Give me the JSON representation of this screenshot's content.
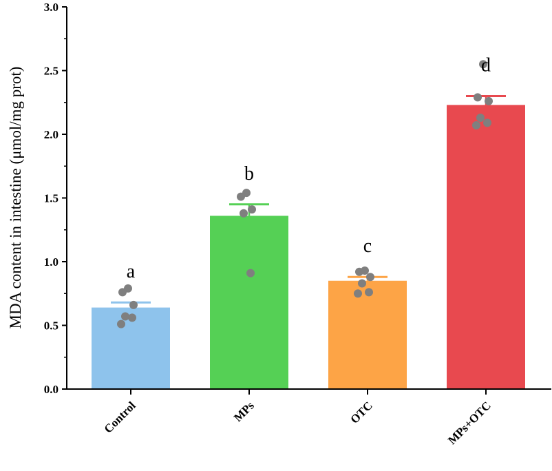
{
  "chart_data": {
    "type": "bar",
    "title": "",
    "xlabel": "",
    "ylabel": "MDA content in intestine (μmol/mg prot)",
    "ylim": [
      0,
      3.0
    ],
    "yticks": [
      0.0,
      0.5,
      1.0,
      1.5,
      2.0,
      2.5,
      3.0
    ],
    "ytick_labels": [
      "0.0",
      "0.5",
      "1.0",
      "1.5",
      "2.0",
      "2.5",
      "3.0"
    ],
    "categories": [
      "Control",
      "MPs",
      "OTC",
      "MPs+OTC"
    ],
    "values": [
      0.64,
      1.36,
      0.85,
      2.23
    ],
    "errors": [
      0.04,
      0.09,
      0.03,
      0.07
    ],
    "letters": [
      "a",
      "b",
      "c",
      "d"
    ],
    "colors": [
      "#8ec3ec",
      "#55d055",
      "#fda446",
      "#e8494f"
    ],
    "error_colors": [
      "#8ec3ec",
      "#55d055",
      "#fda446",
      "#e8494f"
    ],
    "point_color": "#7f7f7f",
    "points": [
      [
        0.79,
        0.76,
        0.66,
        0.57,
        0.56,
        0.51
      ],
      [
        1.54,
        1.51,
        1.41,
        1.38,
        0.91
      ],
      [
        0.93,
        0.92,
        0.88,
        0.83,
        0.76,
        0.75
      ],
      [
        2.55,
        2.29,
        2.26,
        2.13,
        2.09,
        2.07
      ]
    ],
    "grid": false,
    "legend": "none"
  }
}
